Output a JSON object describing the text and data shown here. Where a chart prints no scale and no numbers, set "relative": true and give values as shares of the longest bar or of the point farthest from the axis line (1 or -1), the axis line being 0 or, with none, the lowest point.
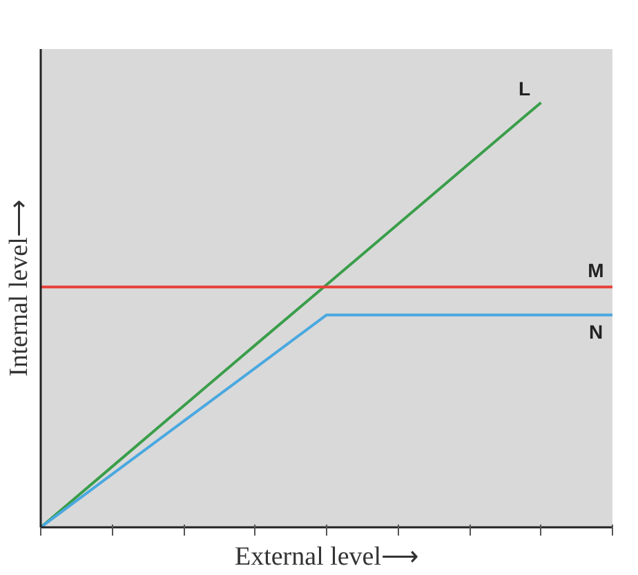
{
  "chart_data": {
    "type": "line",
    "relative": true,
    "xlabel": "External level⟶",
    "ylabel": "Internal level⟶",
    "categories": [
      null,
      null,
      null,
      null,
      null,
      null,
      null,
      null,
      null
    ],
    "grid": false,
    "marker": "none",
    "line_style": "solid",
    "series": [
      {
        "name": "L",
        "color": "#3a9e4a",
        "values": [
          0,
          0.143,
          0.286,
          0.429,
          0.571,
          0.714,
          0.857,
          1,
          null
        ]
      },
      {
        "name": "M",
        "color": "#e8413a",
        "values": [
          0.566,
          0.566,
          0.566,
          0.566,
          0.566,
          0.566,
          0.566,
          0.566,
          0.566
        ]
      },
      {
        "name": "N",
        "color": "#4aa8e0",
        "values": [
          0,
          0.125,
          0.25,
          0.375,
          0.5,
          0.5,
          0.5,
          0.5,
          0.5
        ]
      }
    ]
  }
}
